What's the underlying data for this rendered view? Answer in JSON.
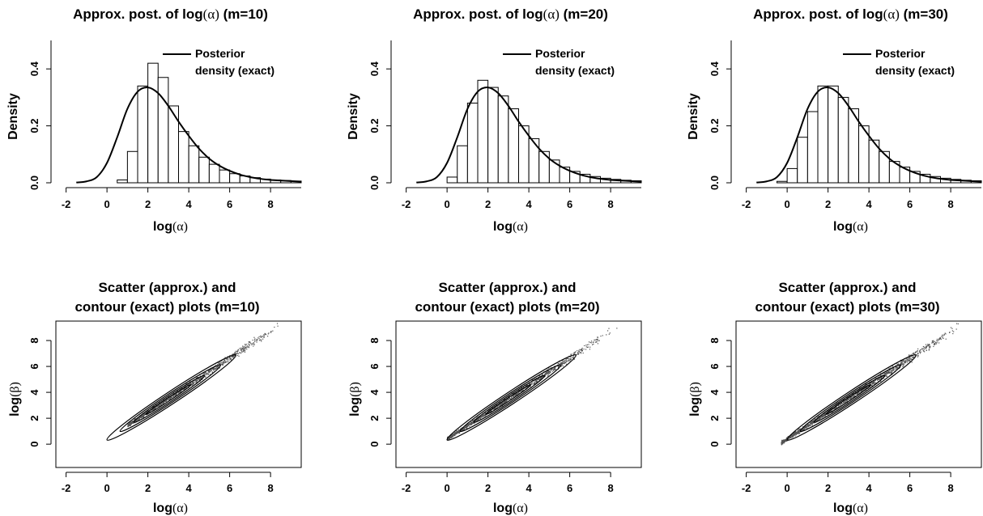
{
  "chart_data": [
    {
      "type": "bar",
      "title": {
        "text": "Approx. post. of log",
        "sym": "(α)",
        "suffix": " (m=10)"
      },
      "xlabel": {
        "text": "log",
        "sym": "(α)"
      },
      "ylabel": "Density",
      "xlim": [
        -2.5,
        9.5
      ],
      "ylim": [
        0,
        0.5
      ],
      "xticks": [
        "-2",
        "0",
        "2",
        "4",
        "6",
        "8"
      ],
      "yticks": [
        "0.0",
        "0.2",
        "0.4"
      ],
      "legend": {
        "position": "top-right",
        "lines": [
          "Posterior",
          "density (exact)"
        ]
      },
      "bin_width": 0.5,
      "bins_start": [
        0.5,
        1.0,
        1.5,
        2.0,
        2.5,
        3.0,
        3.5,
        4.0,
        4.5,
        5.0,
        5.5,
        6.0,
        6.5,
        7.0,
        7.5,
        8.0,
        8.5,
        9.0
      ],
      "values": [
        0.01,
        0.11,
        0.34,
        0.42,
        0.37,
        0.27,
        0.18,
        0.13,
        0.09,
        0.065,
        0.045,
        0.032,
        0.024,
        0.018,
        0.013,
        0.01,
        0.008,
        0.006
      ],
      "density_curve": {
        "name": "Posterior density (exact)",
        "x": [
          -1.5,
          -1.0,
          -0.5,
          0.0,
          0.5,
          1.0,
          1.5,
          2.0,
          2.5,
          3.0,
          3.5,
          4.0,
          4.5,
          5.0,
          5.5,
          6.0,
          6.5,
          7.0,
          7.5,
          8.0,
          9.5
        ],
        "y": [
          0.001,
          0.005,
          0.02,
          0.07,
          0.16,
          0.26,
          0.32,
          0.335,
          0.315,
          0.27,
          0.215,
          0.165,
          0.12,
          0.085,
          0.06,
          0.042,
          0.029,
          0.02,
          0.014,
          0.01,
          0.004
        ]
      }
    },
    {
      "type": "bar",
      "title": {
        "text": "Approx. post. of log",
        "sym": "(α)",
        "suffix": " (m=20)"
      },
      "xlabel": {
        "text": "log",
        "sym": "(α)"
      },
      "ylabel": "Density",
      "xlim": [
        -2.5,
        9.5
      ],
      "ylim": [
        0,
        0.5
      ],
      "xticks": [
        "-2",
        "0",
        "2",
        "4",
        "6",
        "8"
      ],
      "yticks": [
        "0.0",
        "0.2",
        "0.4"
      ],
      "legend": {
        "position": "top-right",
        "lines": [
          "Posterior",
          "density (exact)"
        ]
      },
      "bin_width": 0.5,
      "bins_start": [
        0.0,
        0.5,
        1.0,
        1.5,
        2.0,
        2.5,
        3.0,
        3.5,
        4.0,
        4.5,
        5.0,
        5.5,
        6.0,
        6.5,
        7.0,
        7.5,
        8.0,
        8.5,
        9.0
      ],
      "values": [
        0.02,
        0.13,
        0.28,
        0.36,
        0.335,
        0.305,
        0.26,
        0.2,
        0.155,
        0.11,
        0.08,
        0.055,
        0.04,
        0.03,
        0.022,
        0.016,
        0.012,
        0.009,
        0.007
      ],
      "density_curve": {
        "name": "Posterior density (exact)",
        "x": [
          -1.5,
          -1.0,
          -0.5,
          0.0,
          0.5,
          1.0,
          1.5,
          2.0,
          2.5,
          3.0,
          3.5,
          4.0,
          4.5,
          5.0,
          5.5,
          6.0,
          6.5,
          7.0,
          7.5,
          8.0,
          9.5
        ],
        "y": [
          0.001,
          0.005,
          0.02,
          0.07,
          0.16,
          0.26,
          0.32,
          0.335,
          0.315,
          0.27,
          0.215,
          0.165,
          0.12,
          0.085,
          0.06,
          0.042,
          0.029,
          0.02,
          0.014,
          0.01,
          0.004
        ]
      }
    },
    {
      "type": "bar",
      "title": {
        "text": "Approx. post. of log",
        "sym": "(α)",
        "suffix": " (m=30)"
      },
      "xlabel": {
        "text": "log",
        "sym": "(α)"
      },
      "ylabel": "Density",
      "xlim": [
        -2.5,
        9.5
      ],
      "ylim": [
        0,
        0.5
      ],
      "xticks": [
        "-2",
        "0",
        "2",
        "4",
        "6",
        "8"
      ],
      "yticks": [
        "0.0",
        "0.2",
        "0.4"
      ],
      "legend": {
        "position": "top-right",
        "lines": [
          "Posterior",
          "density (exact)"
        ]
      },
      "bin_width": 0.5,
      "bins_start": [
        -0.5,
        0.0,
        0.5,
        1.0,
        1.5,
        2.0,
        2.5,
        3.0,
        3.5,
        4.0,
        4.5,
        5.0,
        5.5,
        6.0,
        6.5,
        7.0,
        7.5,
        8.0,
        8.5,
        9.0
      ],
      "values": [
        0.005,
        0.05,
        0.16,
        0.25,
        0.34,
        0.34,
        0.3,
        0.26,
        0.2,
        0.15,
        0.11,
        0.075,
        0.055,
        0.04,
        0.03,
        0.022,
        0.016,
        0.012,
        0.009,
        0.007
      ],
      "density_curve": {
        "name": "Posterior density (exact)",
        "x": [
          -1.5,
          -1.0,
          -0.5,
          0.0,
          0.5,
          1.0,
          1.5,
          2.0,
          2.5,
          3.0,
          3.5,
          4.0,
          4.5,
          5.0,
          5.5,
          6.0,
          6.5,
          7.0,
          7.5,
          8.0,
          9.5
        ],
        "y": [
          0.001,
          0.005,
          0.02,
          0.07,
          0.16,
          0.26,
          0.32,
          0.335,
          0.315,
          0.27,
          0.215,
          0.165,
          0.12,
          0.085,
          0.06,
          0.042,
          0.029,
          0.02,
          0.014,
          0.01,
          0.004
        ]
      }
    },
    {
      "type": "scatter",
      "title_lines": [
        "Scatter (approx.) and",
        "contour (exact) plots (m=10)"
      ],
      "xlabel": {
        "text": "log",
        "sym": "(α)"
      },
      "ylabel": {
        "text": "log",
        "sym": "(β)"
      },
      "xlim": [
        -2.5,
        9.5
      ],
      "ylim": [
        -1.8,
        9.5
      ],
      "xticks": [
        "-2",
        "0",
        "2",
        "4",
        "6",
        "8"
      ],
      "yticks": [
        "0",
        "2",
        "4",
        "6",
        "8"
      ],
      "ridge": {
        "slope": 1.04,
        "intercept": 0.45
      },
      "points": {
        "count": 900,
        "x_from": 1.0,
        "x_to": 8.5,
        "spread": 0.18,
        "seed": 11
      },
      "contour_band": {
        "x_from": 0.0,
        "x_to": 6.3,
        "widths": [
          0.2,
          0.38,
          0.55,
          0.75
        ]
      }
    },
    {
      "type": "scatter",
      "title_lines": [
        "Scatter (approx.) and",
        "contour (exact) plots (m=20)"
      ],
      "xlabel": {
        "text": "log",
        "sym": "(α)"
      },
      "ylabel": {
        "text": "log",
        "sym": "(β)"
      },
      "xlim": [
        -2.5,
        9.5
      ],
      "ylim": [
        -1.8,
        9.5
      ],
      "xticks": [
        "-2",
        "0",
        "2",
        "4",
        "6",
        "8"
      ],
      "yticks": [
        "0",
        "2",
        "4",
        "6",
        "8"
      ],
      "ridge": {
        "slope": 1.04,
        "intercept": 0.45
      },
      "points": {
        "count": 1100,
        "x_from": 0.0,
        "x_to": 8.3,
        "spread": 0.2,
        "seed": 23
      },
      "contour_band": {
        "x_from": 0.0,
        "x_to": 6.3,
        "widths": [
          0.2,
          0.38,
          0.55,
          0.75
        ]
      }
    },
    {
      "type": "scatter",
      "title_lines": [
        "Scatter (approx.) and",
        "contour (exact) plots (m=30)"
      ],
      "xlabel": {
        "text": "log",
        "sym": "(α)"
      },
      "ylabel": {
        "text": "log",
        "sym": "(β)"
      },
      "xlim": [
        -2.5,
        9.5
      ],
      "ylim": [
        -1.8,
        9.5
      ],
      "xticks": [
        "-2",
        "0",
        "2",
        "4",
        "6",
        "8"
      ],
      "yticks": [
        "0",
        "2",
        "4",
        "6",
        "8"
      ],
      "ridge": {
        "slope": 1.04,
        "intercept": 0.45
      },
      "points": {
        "count": 1300,
        "x_from": -0.3,
        "x_to": 8.6,
        "spread": 0.22,
        "seed": 37
      },
      "contour_band": {
        "x_from": 0.0,
        "x_to": 6.3,
        "widths": [
          0.2,
          0.38,
          0.55,
          0.75
        ]
      }
    }
  ]
}
